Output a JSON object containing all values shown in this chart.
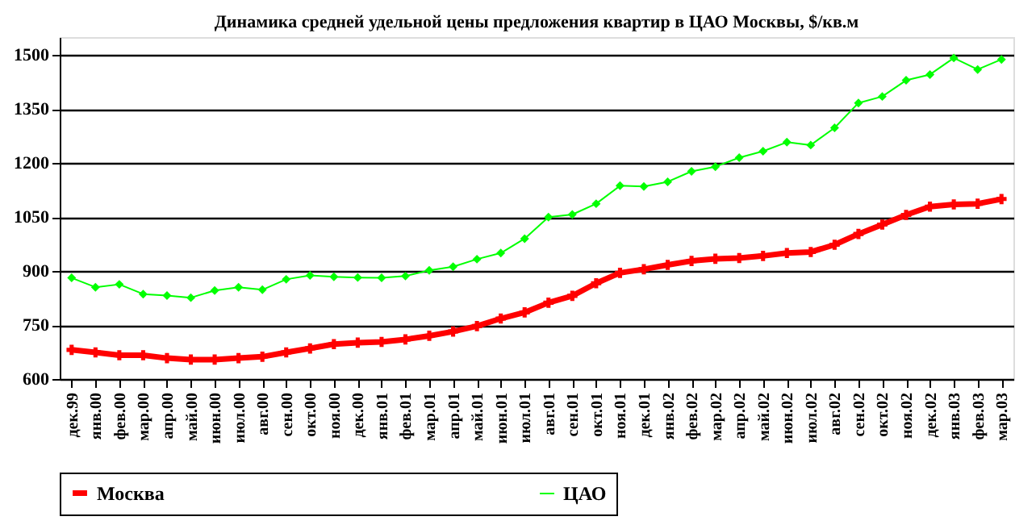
{
  "chart_data": {
    "type": "line",
    "title": "Динамика средней удельной цены  предложения квартир в ЦАО Москвы, $/кв.м",
    "categories": [
      "дек.99",
      "янв.00",
      "фев.00",
      "мар.00",
      "апр.00",
      "май.00",
      "июн.00",
      "июл.00",
      "авг.00",
      "сен.00",
      "окт.00",
      "ноя.00",
      "дек.00",
      "янв.01",
      "фев.01",
      "мар.01",
      "апр.01",
      "май.01",
      "июн.01",
      "июл.01",
      "авг.01",
      "сен.01",
      "окт.01",
      "ноя.01",
      "дек.01",
      "янв.02",
      "фев.02",
      "мар.02",
      "апр.02",
      "май.02",
      "июн.02",
      "июл.02",
      "авг.02",
      "сен.02",
      "окт.02",
      "ноя.02",
      "дек.02",
      "янв.03",
      "фев.03",
      "мар.03"
    ],
    "series": [
      {
        "name": "Москва",
        "color": "#ff0000",
        "marker": "cross",
        "values": [
          681,
          674,
          666,
          666,
          658,
          654,
          654,
          658,
          662,
          674,
          685,
          697,
          701,
          703,
          710,
          720,
          732,
          747,
          768,
          785,
          812,
          831,
          866,
          895,
          905,
          917,
          928,
          934,
          936,
          942,
          950,
          953,
          973,
          1003,
          1029,
          1056,
          1079,
          1085,
          1087,
          1100
        ]
      },
      {
        "name": "ЦАО",
        "color": "#00ff00",
        "marker": "diamond",
        "values": [
          881,
          855,
          863,
          836,
          832,
          826,
          846,
          855,
          848,
          877,
          888,
          884,
          882,
          881,
          886,
          902,
          912,
          933,
          950,
          990,
          1050,
          1057,
          1087,
          1137,
          1135,
          1148,
          1177,
          1190,
          1215,
          1233,
          1258,
          1250,
          1298,
          1367,
          1385,
          1430,
          1446,
          1492,
          1460,
          1488
        ]
      }
    ],
    "ylim": [
      600,
      1550
    ],
    "yticks": [
      600,
      750,
      900,
      1050,
      1200,
      1350,
      1500
    ],
    "grid": "y",
    "legend": "bottom",
    "line_style": "solid"
  }
}
